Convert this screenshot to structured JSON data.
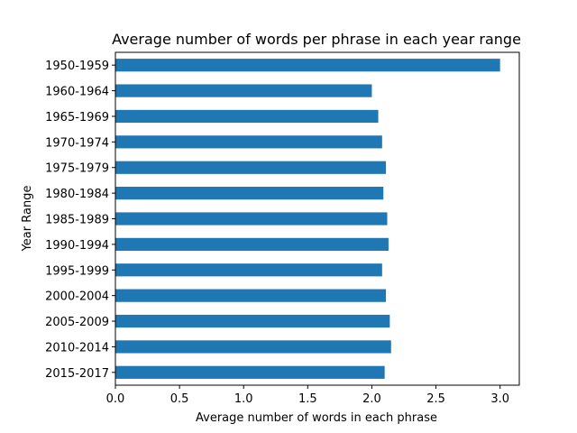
{
  "chart_data": {
    "type": "bar",
    "orientation": "horizontal",
    "title": "Average number of words per phrase in each year range",
    "xlabel": "Average number of words in each phrase",
    "ylabel": "Year Range",
    "xlim": [
      0,
      3.15
    ],
    "xticks": [
      "0.0",
      "0.5",
      "1.0",
      "1.5",
      "2.0",
      "2.5",
      "3.0"
    ],
    "grid": false,
    "legend": "none",
    "bar_color": "#1f77b4",
    "categories": [
      "1950-1959",
      "1960-1964",
      "1965-1969",
      "1970-1974",
      "1975-1979",
      "1980-1984",
      "1985-1989",
      "1990-1994",
      "1995-1999",
      "2000-2004",
      "2005-2009",
      "2010-2014",
      "2015-2017"
    ],
    "values": [
      3.0,
      2.0,
      2.05,
      2.08,
      2.11,
      2.09,
      2.12,
      2.13,
      2.08,
      2.11,
      2.14,
      2.15,
      2.1
    ]
  }
}
